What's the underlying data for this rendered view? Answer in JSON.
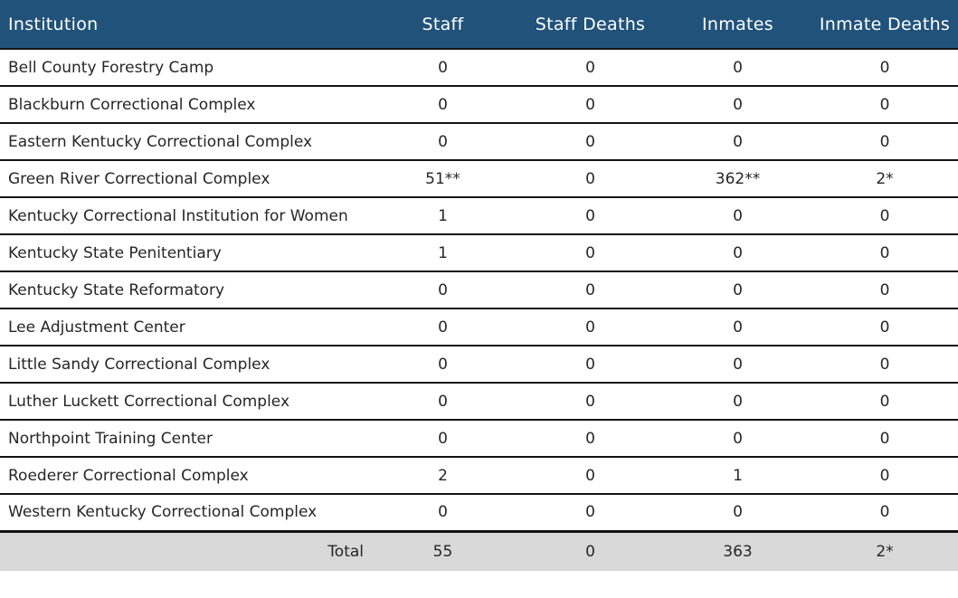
{
  "colors": {
    "header_bg": "#21527A",
    "header_text": "#FFFFFF",
    "row_text": "#262626",
    "total_bg": "#D9D9D9",
    "grid_line": "#141414",
    "row_bg": "#FFFFFF"
  },
  "chart_data": {
    "type": "table",
    "columns": [
      "Institution",
      "Staff",
      "Staff Deaths",
      "Inmates",
      "Inmate Deaths"
    ],
    "rows": [
      [
        "Bell County Forestry Camp",
        "0",
        "0",
        "0",
        "0"
      ],
      [
        "Blackburn Correctional Complex",
        "0",
        "0",
        "0",
        "0"
      ],
      [
        "Eastern Kentucky Correctional Complex",
        "0",
        "0",
        "0",
        "0"
      ],
      [
        "Green River Correctional Complex",
        "51**",
        "0",
        "362**",
        "2*"
      ],
      [
        "Kentucky Correctional Institution for Women",
        "1",
        "0",
        "0",
        "0"
      ],
      [
        "Kentucky State Penitentiary",
        "1",
        "0",
        "0",
        "0"
      ],
      [
        "Kentucky State Reformatory",
        "0",
        "0",
        "0",
        "0"
      ],
      [
        "Lee Adjustment Center",
        "0",
        "0",
        "0",
        "0"
      ],
      [
        "Little Sandy Correctional Complex",
        "0",
        "0",
        "0",
        "0"
      ],
      [
        "Luther Luckett Correctional Complex",
        "0",
        "0",
        "0",
        "0"
      ],
      [
        "Northpoint Training Center",
        "0",
        "0",
        "0",
        "0"
      ],
      [
        "Roederer Correctional Complex",
        "2",
        "0",
        "1",
        "0"
      ],
      [
        "Western Kentucky Correctional Complex",
        "0",
        "0",
        "0",
        "0"
      ]
    ],
    "total_row": [
      "Total",
      "55",
      "0",
      "363",
      "2*"
    ],
    "title": "",
    "layout": {
      "header_position": "top",
      "grid": "horizontal-lines",
      "value_alignment": "center"
    }
  }
}
